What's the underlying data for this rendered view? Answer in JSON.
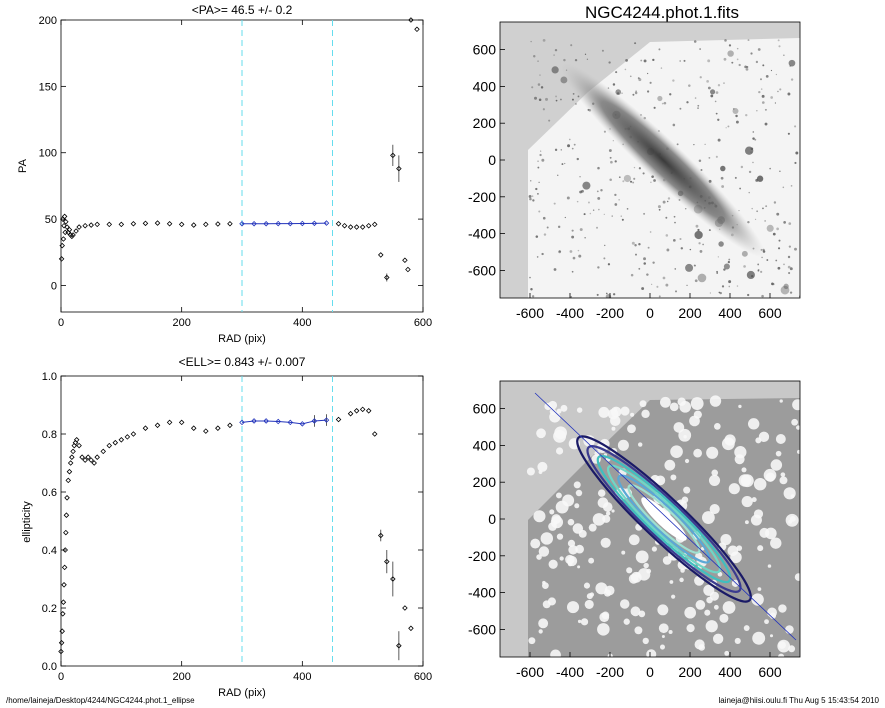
{
  "footer": {
    "path": "/home/laineja/Desktop/4244/NGC4244.phot.1_ellipse",
    "stamp": "laineja@hiisi.oulu.fi  Thu Aug  5 15:43:54 2010"
  },
  "colors": {
    "points": "#000000",
    "fit": "#2233bb",
    "markers": "#66ddee",
    "axes": "#000000"
  },
  "chart_data": [
    {
      "type": "scatter",
      "title": "<PA>=  46.5 +/-   0.2",
      "xlabel": "RAD (pix)",
      "ylabel": "PA",
      "xlim": [
        0,
        600
      ],
      "ylim": [
        -20,
        200
      ],
      "xticks": [
        0,
        200,
        400,
        600
      ],
      "yticks": [
        0,
        50,
        100,
        150,
        200
      ],
      "vlines": [
        300,
        450
      ],
      "fit_range": [
        300,
        450
      ],
      "series": [
        {
          "points": [
            [
              1,
              20
            ],
            [
              2,
              30
            ],
            [
              3,
              50
            ],
            [
              4,
              35
            ],
            [
              5,
              45
            ],
            [
              6,
              52
            ],
            [
              7,
              40
            ],
            [
              8,
              48
            ],
            [
              10,
              44
            ],
            [
              12,
              40
            ],
            [
              14,
              42
            ],
            [
              16,
              38
            ],
            [
              18,
              37
            ],
            [
              20,
              38
            ],
            [
              25,
              41
            ],
            [
              30,
              44
            ],
            [
              40,
              45
            ],
            [
              50,
              45.5
            ],
            [
              60,
              46
            ],
            [
              80,
              46
            ],
            [
              100,
              46
            ],
            [
              120,
              46.5
            ],
            [
              140,
              46.8
            ],
            [
              160,
              47
            ],
            [
              180,
              46.5
            ],
            [
              200,
              46
            ],
            [
              220,
              45.5
            ],
            [
              240,
              46
            ],
            [
              260,
              46.3
            ],
            [
              280,
              46.5
            ],
            [
              300,
              46.5
            ],
            [
              320,
              46.5
            ],
            [
              340,
              46.5
            ],
            [
              360,
              46.6
            ],
            [
              380,
              46.6
            ],
            [
              400,
              46.7
            ],
            [
              420,
              46.8
            ],
            [
              440,
              47
            ],
            [
              460,
              46.5
            ],
            [
              470,
              45
            ],
            [
              480,
              44
            ],
            [
              490,
              44
            ],
            [
              500,
              44
            ],
            [
              510,
              45
            ],
            [
              520,
              46
            ],
            [
              530,
              23
            ],
            [
              540,
              6
            ],
            [
              550,
              98
            ],
            [
              560,
              88
            ],
            [
              570,
              19
            ],
            [
              575,
              12
            ],
            [
              580,
              200
            ],
            [
              590,
              193
            ]
          ],
          "errors": [
            [
              540,
              3
            ],
            [
              550,
              8
            ],
            [
              560,
              10
            ]
          ]
        }
      ]
    },
    {
      "type": "scatter",
      "title": "<ELL>= 0.843 +/-  0.007",
      "xlabel": "RAD (pix)",
      "ylabel": "ellipticity",
      "xlim": [
        0,
        600
      ],
      "ylim": [
        0,
        1
      ],
      "xticks": [
        0,
        200,
        400,
        600
      ],
      "yticks": [
        0.0,
        0.2,
        0.4,
        0.6,
        0.8,
        1.0
      ],
      "vlines": [
        300,
        450
      ],
      "fit_range": [
        300,
        450
      ],
      "series": [
        {
          "points": [
            [
              0,
              0.05
            ],
            [
              1,
              0.08
            ],
            [
              2,
              0.12
            ],
            [
              3,
              0.18
            ],
            [
              4,
              0.22
            ],
            [
              5,
              0.28
            ],
            [
              6,
              0.34
            ],
            [
              7,
              0.4
            ],
            [
              8,
              0.46
            ],
            [
              9,
              0.52
            ],
            [
              10,
              0.58
            ],
            [
              12,
              0.64
            ],
            [
              14,
              0.67
            ],
            [
              16,
              0.7
            ],
            [
              18,
              0.72
            ],
            [
              20,
              0.74
            ],
            [
              22,
              0.76
            ],
            [
              24,
              0.77
            ],
            [
              26,
              0.78
            ],
            [
              30,
              0.76
            ],
            [
              35,
              0.72
            ],
            [
              40,
              0.71
            ],
            [
              45,
              0.72
            ],
            [
              50,
              0.71
            ],
            [
              55,
              0.7
            ],
            [
              60,
              0.72
            ],
            [
              70,
              0.74
            ],
            [
              80,
              0.76
            ],
            [
              90,
              0.77
            ],
            [
              100,
              0.78
            ],
            [
              110,
              0.79
            ],
            [
              120,
              0.8
            ],
            [
              140,
              0.82
            ],
            [
              160,
              0.83
            ],
            [
              180,
              0.84
            ],
            [
              200,
              0.84
            ],
            [
              220,
              0.82
            ],
            [
              240,
              0.81
            ],
            [
              260,
              0.82
            ],
            [
              280,
              0.83
            ],
            [
              300,
              0.84
            ],
            [
              320,
              0.845
            ],
            [
              340,
              0.845
            ],
            [
              360,
              0.843
            ],
            [
              380,
              0.84
            ],
            [
              400,
              0.835
            ],
            [
              420,
              0.845
            ],
            [
              440,
              0.848
            ],
            [
              460,
              0.85
            ],
            [
              480,
              0.87
            ],
            [
              490,
              0.88
            ],
            [
              500,
              0.885
            ],
            [
              510,
              0.88
            ],
            [
              520,
              0.8
            ],
            [
              530,
              0.45
            ],
            [
              540,
              0.36
            ],
            [
              550,
              0.3
            ],
            [
              560,
              0.07
            ],
            [
              570,
              0.2
            ],
            [
              580,
              0.13
            ]
          ],
          "errors": [
            [
              420,
              0.02
            ],
            [
              440,
              0.02
            ],
            [
              530,
              0.02
            ],
            [
              540,
              0.04
            ],
            [
              550,
              0.06
            ],
            [
              560,
              0.05
            ]
          ]
        }
      ]
    },
    {
      "type": "heatmap",
      "title": "NGC4244.phot.1.fits",
      "xlim": [
        -750,
        750
      ],
      "ylim": [
        -750,
        750
      ],
      "xticks": [
        -600,
        -400,
        -200,
        0,
        200,
        400,
        600
      ],
      "yticks": [
        -600,
        -400,
        -200,
        0,
        200,
        400,
        600
      ],
      "galaxy_pa_deg": 46.5
    },
    {
      "type": "heatmap",
      "title": "",
      "xlim": [
        -750,
        750
      ],
      "ylim": [
        -750,
        750
      ],
      "xticks": [
        -600,
        -400,
        -200,
        0,
        200,
        400,
        600
      ],
      "yticks": [
        -600,
        -400,
        -200,
        0,
        200,
        400,
        600
      ],
      "galaxy_pa_deg": 46.5,
      "contour_ellipticity": 0.843
    }
  ]
}
